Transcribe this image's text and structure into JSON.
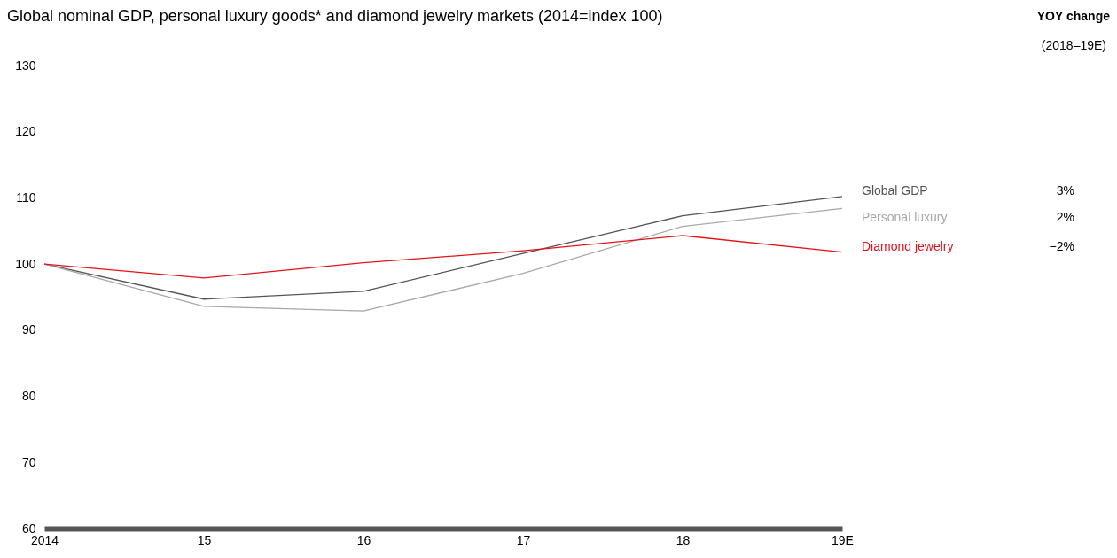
{
  "chart_data": {
    "type": "line",
    "title": "Global nominal GDP, personal luxury goods* and diamond jewelry markets (2014=index 100)",
    "categories": [
      "2014",
      "15",
      "16",
      "17",
      "18",
      "19E"
    ],
    "series": [
      {
        "name": "Global GDP",
        "color": "#555555",
        "values": [
          100,
          94.7,
          95.9,
          101.6,
          107.3,
          110.2
        ]
      },
      {
        "name": "Personal luxury",
        "color": "#a8a8a8",
        "values": [
          100,
          93.6,
          92.9,
          98.6,
          105.7,
          108.4
        ]
      },
      {
        "name": "Diamond jewelry",
        "color": "#e3121b",
        "values": [
          100,
          97.9,
          100.2,
          102.0,
          104.3,
          101.8
        ]
      }
    ],
    "annotations": [
      "YOY change",
      "(2018–19E)",
      "3%",
      "2%",
      "−2%"
    ],
    "ylim": [
      60,
      130
    ],
    "yticks": [
      60,
      70,
      80,
      90,
      100,
      110,
      120,
      130
    ],
    "grid": false,
    "legend": false,
    "marker": "none",
    "line_style": "solid"
  }
}
